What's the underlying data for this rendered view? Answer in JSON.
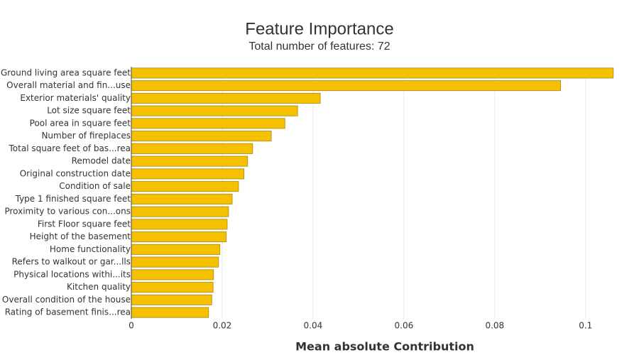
{
  "chart_data": {
    "type": "barh",
    "title": "Feature Importance",
    "subtitle": "Total number of features: 72",
    "x_label": "Mean absolute Contribution",
    "categories": [
      "Ground living area square feet",
      "Overall material and fin...use",
      "Exterior materials' quality",
      "Lot size square feet",
      "Pool area in square feet",
      "Number of fireplaces",
      "Total square feet of bas...rea",
      "Remodel date",
      "Original construction date",
      "Condition of sale",
      "Type 1 finished square feet",
      "Proximity to various con...ons",
      "First Floor square feet",
      "Height of the basement",
      "Home functionality",
      "Refers to walkout or gar...lls",
      "Physical locations withi...its",
      "Kitchen quality",
      "Overall condition of the house",
      "Rating of basement finis...rea"
    ],
    "values": [
      0.1061,
      0.0945,
      0.0416,
      0.0366,
      0.0338,
      0.0308,
      0.0267,
      0.0256,
      0.0248,
      0.0236,
      0.0222,
      0.0214,
      0.0211,
      0.0209,
      0.0195,
      0.0192,
      0.0181,
      0.018,
      0.0177,
      0.017
    ],
    "color": "#f5c000",
    "xlim": [
      0,
      0.1116
    ],
    "xticks": [
      0,
      0.02,
      0.04,
      0.06,
      0.08,
      0.1
    ],
    "grid": true
  }
}
